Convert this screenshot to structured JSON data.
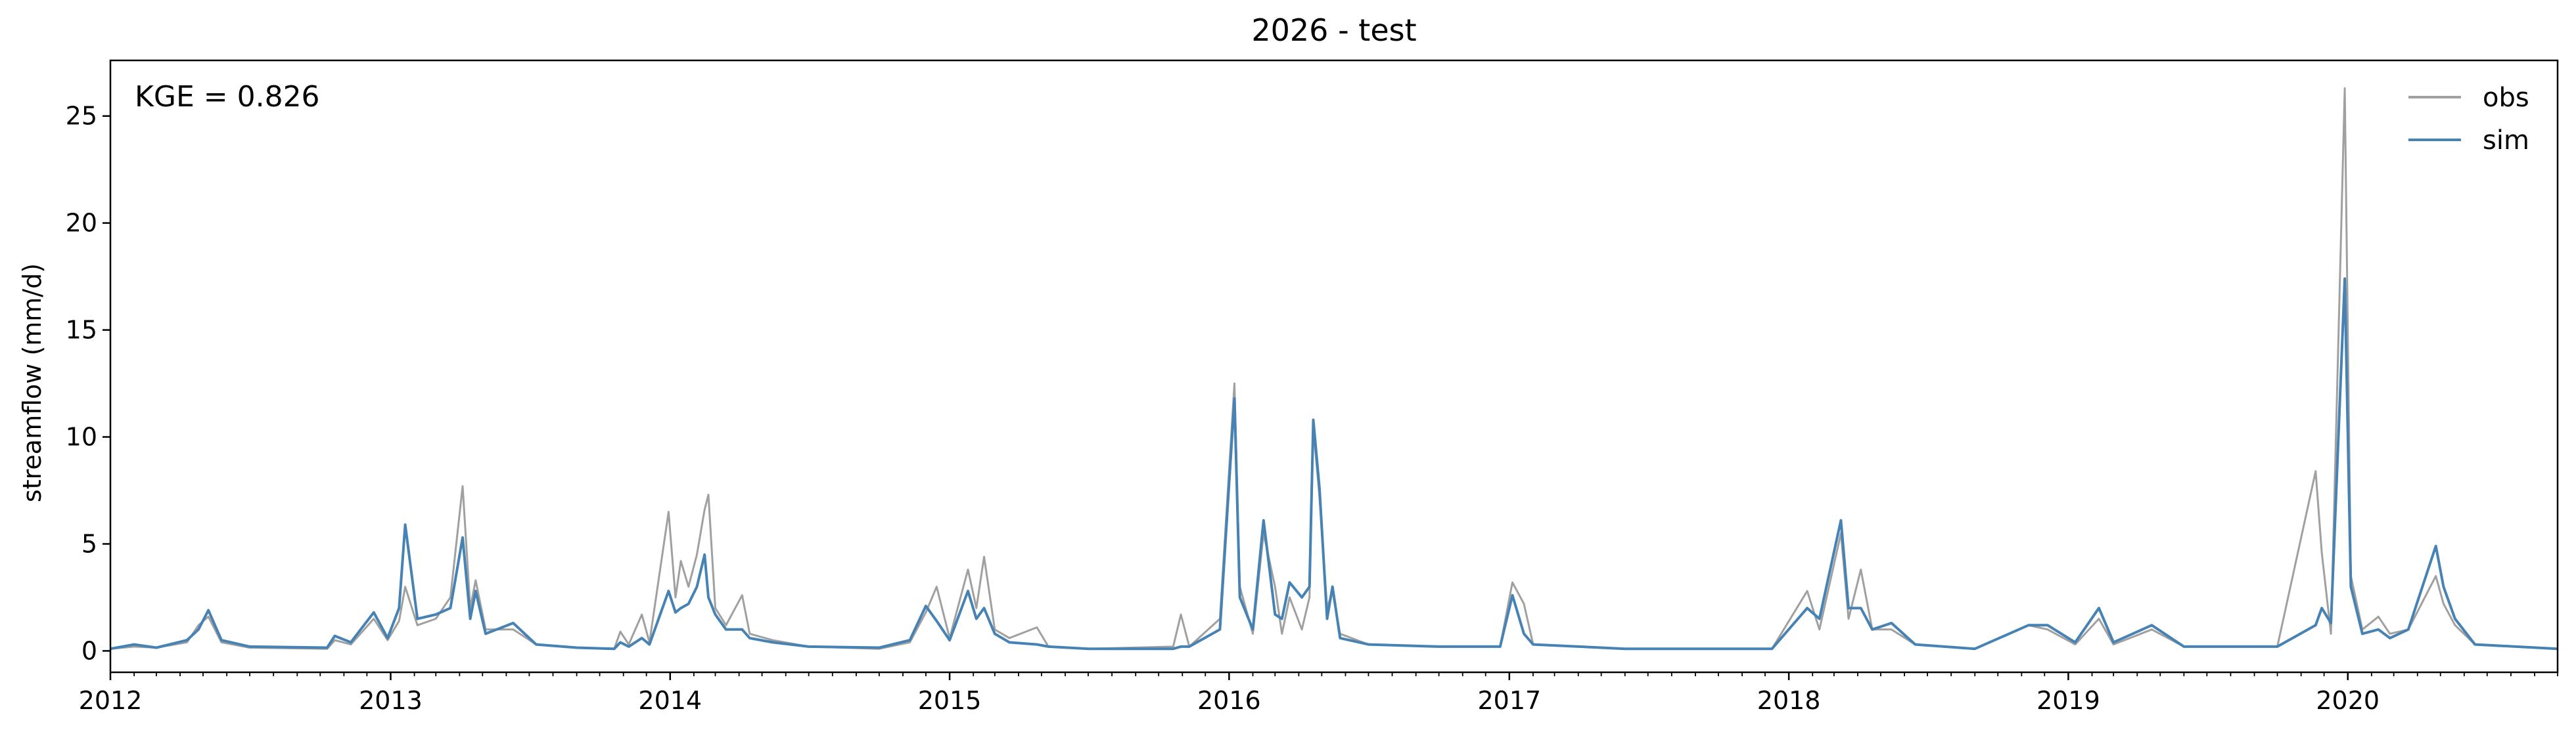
{
  "chart_data": {
    "type": "line",
    "title": "2026 - test",
    "xlabel": "",
    "ylabel": "streamflow (mm/d)",
    "annotation": "KGE = 0.826",
    "legend_position": "top-right",
    "grid": false,
    "xlim": [
      "2012-01-01",
      "2020-10-01"
    ],
    "ylim": [
      -1.0,
      27.6
    ],
    "x_ticks": [
      "2012",
      "2013",
      "2014",
      "2015",
      "2016",
      "2017",
      "2018",
      "2019",
      "2020"
    ],
    "y_ticks": [
      0,
      5,
      10,
      15,
      20,
      25
    ],
    "series": [
      {
        "name": "obs",
        "color": "#a0a0a0",
        "points": [
          [
            "2012-01-01",
            0.1
          ],
          [
            "2012-02-01",
            0.2
          ],
          [
            "2012-03-01",
            0.15
          ],
          [
            "2012-04-10",
            0.4
          ],
          [
            "2012-04-25",
            1.2
          ],
          [
            "2012-05-08",
            1.6
          ],
          [
            "2012-05-25",
            0.4
          ],
          [
            "2012-07-01",
            0.15
          ],
          [
            "2012-10-10",
            0.1
          ],
          [
            "2012-10-20",
            0.5
          ],
          [
            "2012-11-10",
            0.3
          ],
          [
            "2012-12-10",
            1.5
          ],
          [
            "2012-12-28",
            0.5
          ],
          [
            "2013-01-12",
            1.4
          ],
          [
            "2013-01-20",
            3.0
          ],
          [
            "2013-02-05",
            1.2
          ],
          [
            "2013-03-01",
            1.5
          ],
          [
            "2013-03-20",
            2.5
          ],
          [
            "2013-04-05",
            7.7
          ],
          [
            "2013-04-15",
            2.0
          ],
          [
            "2013-04-22",
            3.3
          ],
          [
            "2013-05-05",
            1.0
          ],
          [
            "2013-06-10",
            1.0
          ],
          [
            "2013-07-10",
            0.3
          ],
          [
            "2013-09-01",
            0.15
          ],
          [
            "2013-10-20",
            0.1
          ],
          [
            "2013-10-28",
            0.9
          ],
          [
            "2013-11-08",
            0.3
          ],
          [
            "2013-11-25",
            1.7
          ],
          [
            "2013-12-05",
            0.4
          ],
          [
            "2013-12-30",
            6.5
          ],
          [
            "2014-01-08",
            2.5
          ],
          [
            "2014-01-15",
            4.2
          ],
          [
            "2014-01-25",
            3.0
          ],
          [
            "2014-02-05",
            4.5
          ],
          [
            "2014-02-15",
            6.6
          ],
          [
            "2014-02-20",
            7.3
          ],
          [
            "2014-03-01",
            2.0
          ],
          [
            "2014-03-15",
            1.2
          ],
          [
            "2014-04-05",
            2.6
          ],
          [
            "2014-04-15",
            0.8
          ],
          [
            "2014-05-15",
            0.5
          ],
          [
            "2014-07-01",
            0.2
          ],
          [
            "2014-10-01",
            0.1
          ],
          [
            "2014-11-10",
            0.4
          ],
          [
            "2014-12-01",
            1.8
          ],
          [
            "2014-12-15",
            3.0
          ],
          [
            "2015-01-01",
            0.6
          ],
          [
            "2015-01-25",
            3.8
          ],
          [
            "2015-02-05",
            2.0
          ],
          [
            "2015-02-15",
            4.4
          ],
          [
            "2015-03-01",
            1.0
          ],
          [
            "2015-03-20",
            0.6
          ],
          [
            "2015-04-25",
            1.1
          ],
          [
            "2015-05-10",
            0.2
          ],
          [
            "2015-07-01",
            0.1
          ],
          [
            "2015-10-20",
            0.2
          ],
          [
            "2015-10-30",
            1.7
          ],
          [
            "2015-11-10",
            0.2
          ],
          [
            "2015-12-20",
            1.5
          ],
          [
            "2016-01-08",
            12.5
          ],
          [
            "2016-01-15",
            3.0
          ],
          [
            "2016-02-01",
            0.8
          ],
          [
            "2016-02-15",
            5.5
          ],
          [
            "2016-03-01",
            3.0
          ],
          [
            "2016-03-10",
            0.8
          ],
          [
            "2016-03-20",
            2.5
          ],
          [
            "2016-04-05",
            1.0
          ],
          [
            "2016-04-15",
            2.5
          ],
          [
            "2016-04-20",
            10.4
          ],
          [
            "2016-04-28",
            7.2
          ],
          [
            "2016-05-08",
            2.0
          ],
          [
            "2016-05-15",
            2.8
          ],
          [
            "2016-05-25",
            0.8
          ],
          [
            "2016-07-01",
            0.3
          ],
          [
            "2016-10-01",
            0.2
          ],
          [
            "2016-12-20",
            0.2
          ],
          [
            "2017-01-05",
            3.2
          ],
          [
            "2017-01-20",
            2.2
          ],
          [
            "2017-02-01",
            0.3
          ],
          [
            "2017-06-01",
            0.1
          ],
          [
            "2017-12-10",
            0.1
          ],
          [
            "2018-01-25",
            2.8
          ],
          [
            "2018-02-10",
            1.0
          ],
          [
            "2018-03-10",
            5.5
          ],
          [
            "2018-03-20",
            1.5
          ],
          [
            "2018-04-05",
            3.8
          ],
          [
            "2018-04-20",
            1.0
          ],
          [
            "2018-05-15",
            1.0
          ],
          [
            "2018-06-15",
            0.3
          ],
          [
            "2018-09-01",
            0.1
          ],
          [
            "2018-11-10",
            1.2
          ],
          [
            "2018-12-05",
            1.0
          ],
          [
            "2019-01-10",
            0.3
          ],
          [
            "2019-02-10",
            1.5
          ],
          [
            "2019-03-01",
            0.3
          ],
          [
            "2019-04-20",
            1.0
          ],
          [
            "2019-06-01",
            0.2
          ],
          [
            "2019-10-01",
            0.2
          ],
          [
            "2019-11-20",
            8.4
          ],
          [
            "2019-11-28",
            4.6
          ],
          [
            "2019-12-10",
            0.8
          ],
          [
            "2019-12-28",
            26.3
          ],
          [
            "2020-01-05",
            3.5
          ],
          [
            "2020-01-20",
            1.0
          ],
          [
            "2020-02-10",
            1.6
          ],
          [
            "2020-02-25",
            0.8
          ],
          [
            "2020-03-20",
            1.0
          ],
          [
            "2020-04-25",
            3.5
          ],
          [
            "2020-05-05",
            2.2
          ],
          [
            "2020-05-20",
            1.2
          ],
          [
            "2020-06-15",
            0.3
          ],
          [
            "2020-10-01",
            0.1
          ]
        ]
      },
      {
        "name": "sim",
        "color": "#4682b4",
        "points": [
          [
            "2012-01-01",
            0.1
          ],
          [
            "2012-02-01",
            0.3
          ],
          [
            "2012-03-01",
            0.15
          ],
          [
            "2012-04-10",
            0.5
          ],
          [
            "2012-04-25",
            1.0
          ],
          [
            "2012-05-08",
            1.9
          ],
          [
            "2012-05-25",
            0.5
          ],
          [
            "2012-07-01",
            0.2
          ],
          [
            "2012-10-10",
            0.15
          ],
          [
            "2012-10-20",
            0.7
          ],
          [
            "2012-11-10",
            0.4
          ],
          [
            "2012-12-10",
            1.8
          ],
          [
            "2012-12-28",
            0.6
          ],
          [
            "2013-01-12",
            2.0
          ],
          [
            "2013-01-20",
            5.9
          ],
          [
            "2013-02-05",
            1.5
          ],
          [
            "2013-03-01",
            1.7
          ],
          [
            "2013-03-20",
            2.0
          ],
          [
            "2013-04-05",
            5.3
          ],
          [
            "2013-04-15",
            1.5
          ],
          [
            "2013-04-22",
            2.8
          ],
          [
            "2013-05-05",
            0.8
          ],
          [
            "2013-06-10",
            1.3
          ],
          [
            "2013-07-10",
            0.3
          ],
          [
            "2013-09-01",
            0.15
          ],
          [
            "2013-10-20",
            0.1
          ],
          [
            "2013-10-28",
            0.4
          ],
          [
            "2013-11-08",
            0.2
          ],
          [
            "2013-11-25",
            0.6
          ],
          [
            "2013-12-05",
            0.3
          ],
          [
            "2013-12-30",
            2.8
          ],
          [
            "2014-01-08",
            1.8
          ],
          [
            "2014-01-15",
            2.0
          ],
          [
            "2014-01-25",
            2.2
          ],
          [
            "2014-02-05",
            3.0
          ],
          [
            "2014-02-15",
            4.5
          ],
          [
            "2014-02-20",
            2.5
          ],
          [
            "2014-03-01",
            1.7
          ],
          [
            "2014-03-15",
            1.0
          ],
          [
            "2014-04-05",
            1.0
          ],
          [
            "2014-04-15",
            0.6
          ],
          [
            "2014-05-15",
            0.4
          ],
          [
            "2014-07-01",
            0.2
          ],
          [
            "2014-10-01",
            0.15
          ],
          [
            "2014-11-10",
            0.5
          ],
          [
            "2014-12-01",
            2.1
          ],
          [
            "2014-12-15",
            1.4
          ],
          [
            "2015-01-01",
            0.5
          ],
          [
            "2015-01-25",
            2.8
          ],
          [
            "2015-02-05",
            1.5
          ],
          [
            "2015-02-15",
            2.0
          ],
          [
            "2015-03-01",
            0.8
          ],
          [
            "2015-03-20",
            0.4
          ],
          [
            "2015-04-25",
            0.3
          ],
          [
            "2015-05-10",
            0.2
          ],
          [
            "2015-07-01",
            0.1
          ],
          [
            "2015-10-20",
            0.1
          ],
          [
            "2015-10-30",
            0.2
          ],
          [
            "2015-11-10",
            0.2
          ],
          [
            "2015-12-20",
            1.0
          ],
          [
            "2016-01-08",
            11.8
          ],
          [
            "2016-01-15",
            2.5
          ],
          [
            "2016-02-01",
            1.0
          ],
          [
            "2016-02-15",
            6.1
          ],
          [
            "2016-03-01",
            1.7
          ],
          [
            "2016-03-10",
            1.5
          ],
          [
            "2016-03-20",
            3.2
          ],
          [
            "2016-04-05",
            2.5
          ],
          [
            "2016-04-15",
            3.0
          ],
          [
            "2016-04-20",
            10.8
          ],
          [
            "2016-04-28",
            7.6
          ],
          [
            "2016-05-08",
            1.5
          ],
          [
            "2016-05-15",
            3.0
          ],
          [
            "2016-05-25",
            0.6
          ],
          [
            "2016-07-01",
            0.3
          ],
          [
            "2016-10-01",
            0.2
          ],
          [
            "2016-12-20",
            0.2
          ],
          [
            "2017-01-05",
            2.6
          ],
          [
            "2017-01-20",
            0.8
          ],
          [
            "2017-02-01",
            0.3
          ],
          [
            "2017-06-01",
            0.1
          ],
          [
            "2017-12-10",
            0.1
          ],
          [
            "2018-01-25",
            2.0
          ],
          [
            "2018-02-10",
            1.5
          ],
          [
            "2018-03-10",
            6.1
          ],
          [
            "2018-03-20",
            2.0
          ],
          [
            "2018-04-05",
            2.0
          ],
          [
            "2018-04-20",
            1.0
          ],
          [
            "2018-05-15",
            1.3
          ],
          [
            "2018-06-15",
            0.3
          ],
          [
            "2018-09-01",
            0.1
          ],
          [
            "2018-11-10",
            1.2
          ],
          [
            "2018-12-05",
            1.2
          ],
          [
            "2019-01-10",
            0.4
          ],
          [
            "2019-02-10",
            2.0
          ],
          [
            "2019-03-01",
            0.4
          ],
          [
            "2019-04-20",
            1.2
          ],
          [
            "2019-06-01",
            0.2
          ],
          [
            "2019-10-01",
            0.2
          ],
          [
            "2019-11-20",
            1.2
          ],
          [
            "2019-11-28",
            2.0
          ],
          [
            "2019-12-10",
            1.3
          ],
          [
            "2019-12-28",
            17.4
          ],
          [
            "2020-01-05",
            3.0
          ],
          [
            "2020-01-20",
            0.8
          ],
          [
            "2020-02-10",
            1.0
          ],
          [
            "2020-02-25",
            0.6
          ],
          [
            "2020-03-20",
            1.0
          ],
          [
            "2020-04-25",
            4.9
          ],
          [
            "2020-05-05",
            3.0
          ],
          [
            "2020-05-20",
            1.5
          ],
          [
            "2020-06-15",
            0.3
          ],
          [
            "2020-10-01",
            0.1
          ]
        ]
      }
    ]
  }
}
